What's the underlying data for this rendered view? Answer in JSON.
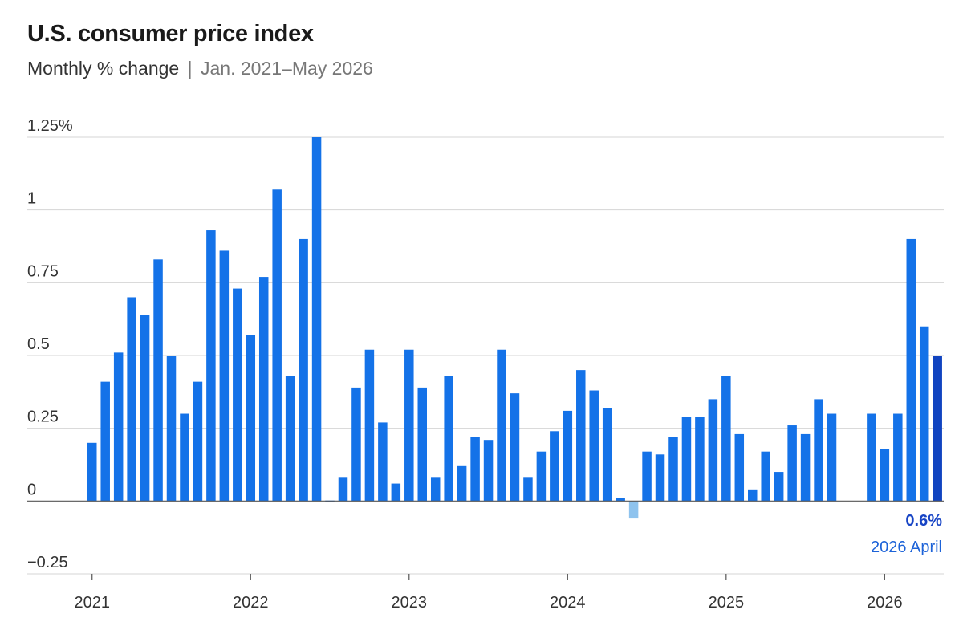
{
  "title": "U.S. consumer price index",
  "subtitle": "Monthly % change",
  "subtitle_separator": "|",
  "subtitle_range": "Jan. 2021–May 2026",
  "colors": {
    "bar": "#1472e8",
    "bar_negative": "#8ec3ee",
    "bar_latest": "#1144c0",
    "grid": "#d4d4d4",
    "zero_line": "#555555"
  },
  "chart_data": {
    "type": "bar",
    "title": "U.S. consumer price index",
    "subtitle": "Monthly % change | Jan. 2021–May 2026",
    "ylim": [
      -0.25,
      1.25
    ],
    "y_ticks": [
      {
        "value": 1.25,
        "label": "1.25%"
      },
      {
        "value": 1,
        "label": "1"
      },
      {
        "value": 0.75,
        "label": "0.75"
      },
      {
        "value": 0.5,
        "label": "0.5"
      },
      {
        "value": 0.25,
        "label": "0.25"
      },
      {
        "value": 0,
        "label": "0"
      },
      {
        "value": -0.25,
        "label": "−0.25"
      }
    ],
    "x_ticks": [
      "2021",
      "2022",
      "2023",
      "2024",
      "2025",
      "2026"
    ],
    "grid": true,
    "start": "2021-01",
    "values": [
      0.2,
      0.41,
      0.51,
      0.7,
      0.64,
      0.83,
      0.5,
      0.3,
      0.41,
      0.93,
      0.86,
      0.73,
      0.57,
      0.77,
      1.07,
      0.43,
      0.9,
      1.25,
      0.0,
      0.08,
      0.39,
      0.52,
      0.27,
      0.06,
      0.52,
      0.39,
      0.08,
      0.43,
      0.12,
      0.22,
      0.21,
      0.52,
      0.37,
      0.08,
      0.17,
      0.24,
      0.31,
      0.45,
      0.38,
      0.32,
      0.01,
      -0.06,
      0.17,
      0.16,
      0.22,
      0.29,
      0.29,
      0.35,
      0.43,
      0.23,
      0.04,
      0.17,
      0.1,
      0.26,
      0.23,
      0.35,
      0.3,
      null,
      null,
      0.3,
      0.18,
      0.3,
      0.9,
      0.6,
      0.5
    ],
    "annotation": {
      "value_label": "0.6%",
      "period_label": "2026 April"
    }
  }
}
